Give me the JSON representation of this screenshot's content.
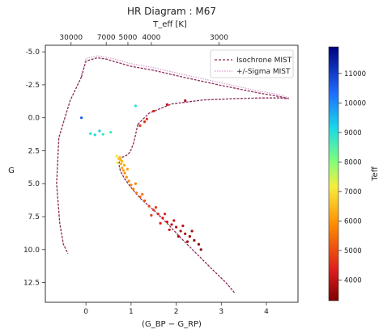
{
  "chart_data": {
    "type": "scatter",
    "title": "HR Diagram : M67",
    "xlabel": "(G_BP − G_RP)",
    "ylabel": "G",
    "top_xlabel": "T_eff [K]",
    "colorbar_label": "Teff",
    "xlim": [
      -0.9,
      4.7
    ],
    "ylim": [
      14.0,
      -5.5
    ],
    "y_inverted": true,
    "x_ticks": [
      "0",
      "1",
      "2",
      "3",
      "4"
    ],
    "y_ticks": [
      "-5.0",
      "-2.5",
      "0.0",
      "2.5",
      "5.0",
      "7.5",
      "10.0",
      "12.5"
    ],
    "top_ticks": [
      "30000",
      "7000",
      "5000",
      "4000",
      "3000"
    ],
    "colorbar_range": [
      3300,
      11900
    ],
    "colorbar_ticks": [
      "11000",
      "10000",
      "9000",
      "8000",
      "7000",
      "6000",
      "5000",
      "4000"
    ],
    "legend": [
      "Isochrone MIST",
      "+/-Sigma MIST"
    ],
    "legend_position": "top-right",
    "isochrone_color": "#8a2a5a",
    "sigma_color": "#d49acb",
    "series": [
      {
        "name": "Isochrone MIST",
        "style": "dashed",
        "x": [
          -0.1,
          0.0,
          0.25,
          0.45,
          0.7,
          1.0,
          1.5,
          2.2,
          3.0,
          3.8,
          4.3,
          4.5
        ],
        "y": [
          -3.1,
          -4.3,
          -4.55,
          -4.45,
          -4.2,
          -3.9,
          -3.6,
          -3.05,
          -2.45,
          -1.9,
          -1.6,
          -1.45
        ]
      },
      {
        "name": "+/-Sigma MIST",
        "style": "dotted",
        "x": [
          -0.1,
          0.0,
          0.25,
          0.45,
          0.7,
          1.0,
          1.5,
          2.2,
          3.0,
          3.8,
          4.3,
          4.5
        ],
        "y": [
          -3.3,
          -4.5,
          -4.7,
          -4.6,
          -4.4,
          -4.1,
          -3.8,
          -3.25,
          -2.65,
          -2.05,
          -1.75,
          -1.5
        ]
      },
      {
        "name": "Isochrone MIST",
        "style": "dashed",
        "x": [
          -0.1,
          -0.35,
          -0.6,
          -0.65,
          -0.58,
          -0.5,
          -0.4
        ],
        "y": [
          -3.1,
          -1.3,
          1.5,
          5.0,
          8.0,
          9.6,
          10.3
        ]
      },
      {
        "name": "Isochrone MIST",
        "style": "dashed",
        "x": [
          1.15,
          1.4,
          1.9,
          2.6,
          3.3,
          3.9,
          4.3,
          4.45
        ],
        "y": [
          0.5,
          -0.35,
          -1.05,
          -1.35,
          -1.45,
          -1.5,
          -1.5,
          -1.45
        ]
      },
      {
        "name": "Isochrone MIST",
        "style": "dashed",
        "x": [
          1.15,
          1.1,
          1.05,
          0.98,
          0.9,
          0.8,
          0.75,
          0.73,
          0.76,
          0.85,
          1.0,
          1.2,
          1.5,
          1.8,
          2.1,
          2.45,
          2.8,
          3.1,
          3.3
        ],
        "y": [
          0.5,
          1.3,
          2.0,
          2.6,
          2.85,
          3.0,
          3.2,
          3.5,
          4.0,
          4.6,
          5.3,
          6.1,
          7.0,
          8.0,
          9.1,
          10.3,
          11.5,
          12.5,
          13.3
        ]
      }
    ],
    "stars": [
      {
        "x": 0.75,
        "y": 3.0,
        "teff": 6500
      },
      {
        "x": 0.77,
        "y": 3.2,
        "teff": 6400
      },
      {
        "x": 0.78,
        "y": 3.5,
        "teff": 6300
      },
      {
        "x": 0.8,
        "y": 3.8,
        "teff": 6200
      },
      {
        "x": 0.83,
        "y": 4.0,
        "teff": 6100
      },
      {
        "x": 0.86,
        "y": 4.2,
        "teff": 6000
      },
      {
        "x": 0.9,
        "y": 4.5,
        "teff": 5900
      },
      {
        "x": 0.95,
        "y": 4.8,
        "teff": 5800
      },
      {
        "x": 1.0,
        "y": 5.1,
        "teff": 5700
      },
      {
        "x": 1.05,
        "y": 5.4,
        "teff": 5600
      },
      {
        "x": 1.12,
        "y": 5.7,
        "teff": 5500
      },
      {
        "x": 1.2,
        "y": 6.0,
        "teff": 5300
      },
      {
        "x": 1.3,
        "y": 6.3,
        "teff": 5100
      },
      {
        "x": 1.4,
        "y": 6.7,
        "teff": 4900
      },
      {
        "x": 1.5,
        "y": 7.0,
        "teff": 4700
      },
      {
        "x": 1.6,
        "y": 7.3,
        "teff": 4500
      },
      {
        "x": 1.7,
        "y": 7.6,
        "teff": 4300
      },
      {
        "x": 1.8,
        "y": 7.9,
        "teff": 4100
      },
      {
        "x": 1.9,
        "y": 8.1,
        "teff": 4000
      },
      {
        "x": 2.0,
        "y": 8.3,
        "teff": 3900
      },
      {
        "x": 2.1,
        "y": 8.6,
        "teff": 3800
      },
      {
        "x": 2.2,
        "y": 8.8,
        "teff": 3700
      },
      {
        "x": 2.3,
        "y": 9.0,
        "teff": 3600
      },
      {
        "x": 2.4,
        "y": 9.3,
        "teff": 3500
      },
      {
        "x": 2.5,
        "y": 9.6,
        "teff": 3450
      },
      {
        "x": 0.72,
        "y": 3.1,
        "teff": 6600
      },
      {
        "x": 0.8,
        "y": 3.3,
        "teff": 6400
      },
      {
        "x": 0.85,
        "y": 3.6,
        "teff": 6250
      },
      {
        "x": 0.92,
        "y": 3.9,
        "teff": 6100
      },
      {
        "x": 1.1,
        "y": 5.0,
        "teff": 5700
      },
      {
        "x": 1.25,
        "y": 5.8,
        "teff": 5400
      },
      {
        "x": 1.55,
        "y": 6.8,
        "teff": 4800
      },
      {
        "x": 1.75,
        "y": 7.3,
        "teff": 4400
      },
      {
        "x": 1.95,
        "y": 7.8,
        "teff": 4100
      },
      {
        "x": 2.15,
        "y": 8.2,
        "teff": 3900
      },
      {
        "x": 2.35,
        "y": 8.6,
        "teff": 3700
      },
      {
        "x": 1.85,
        "y": 8.5,
        "teff": 4000
      },
      {
        "x": 2.05,
        "y": 9.0,
        "teff": 3800
      },
      {
        "x": 2.25,
        "y": 9.4,
        "teff": 3600
      },
      {
        "x": 1.65,
        "y": 8.0,
        "teff": 4300
      },
      {
        "x": 1.45,
        "y": 7.4,
        "teff": 4700
      },
      {
        "x": 2.55,
        "y": 10.0,
        "teff": 3400
      },
      {
        "x": 1.3,
        "y": 0.3,
        "teff": 4600
      },
      {
        "x": 1.5,
        "y": -0.5,
        "teff": 4400
      },
      {
        "x": 1.8,
        "y": -1.0,
        "teff": 4100
      },
      {
        "x": 2.2,
        "y": -1.3,
        "teff": 3900
      },
      {
        "x": 1.2,
        "y": 0.6,
        "teff": 4700
      },
      {
        "x": 1.35,
        "y": 0.1,
        "teff": 4550
      },
      {
        "x": 1.1,
        "y": -0.9,
        "teff": 8900
      },
      {
        "x": 0.3,
        "y": 1.0,
        "teff": 9300
      },
      {
        "x": 0.1,
        "y": 1.2,
        "teff": 9000
      },
      {
        "x": 0.2,
        "y": 1.3,
        "teff": 9100
      },
      {
        "x": -0.1,
        "y": 0.0,
        "teff": 10600
      },
      {
        "x": 0.55,
        "y": 1.1,
        "teff": 8700
      },
      {
        "x": 0.38,
        "y": 1.25,
        "teff": 8800
      },
      {
        "x": 0.7,
        "y": 3.4,
        "teff": 7300
      },
      {
        "x": 0.68,
        "y": 2.9,
        "teff": 7100
      }
    ]
  }
}
